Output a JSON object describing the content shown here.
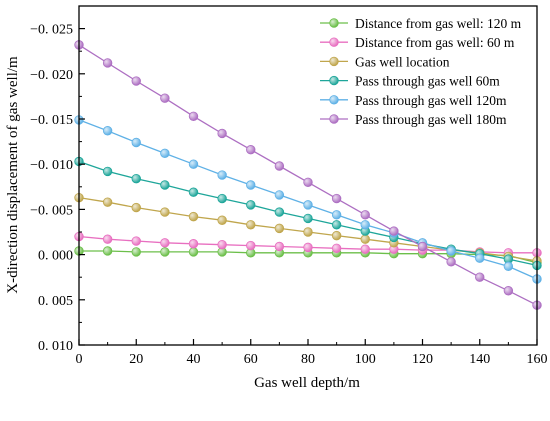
{
  "chart_data": {
    "type": "line",
    "title": "",
    "xlabel": "Gas well depth/m",
    "ylabel": "X-direction displacement of gas well/m",
    "xlim": [
      0,
      160
    ],
    "ylim": [
      0.01,
      -0.0275
    ],
    "y_axis_inverted": true,
    "grid": false,
    "legend_position": "top-right",
    "x_ticks": [
      "0",
      "20",
      "40",
      "60",
      "80",
      "100",
      "120",
      "140",
      "160"
    ],
    "y_ticks": [
      "−0. 025",
      "−0. 020",
      "−0. 015",
      "−0. 010",
      "−0. 005",
      "0. 000",
      "0. 005",
      "0. 010"
    ],
    "y_tick_values": [
      -0.025,
      -0.02,
      -0.015,
      -0.01,
      -0.005,
      0.0,
      0.005,
      0.01
    ],
    "x": [
      0,
      10,
      20,
      30,
      40,
      50,
      60,
      70,
      80,
      90,
      100,
      110,
      120,
      130,
      140,
      150,
      160
    ],
    "series": [
      {
        "name": "Distance from gas well: 120 m",
        "color": "#6cbf4a",
        "values": [
          -0.0004,
          -0.0004,
          -0.0003,
          -0.0003,
          -0.0003,
          -0.0003,
          -0.0002,
          -0.0002,
          -0.0002,
          -0.0002,
          -0.0002,
          -0.0001,
          -0.0001,
          -0.0001,
          0.0,
          0.0001,
          0.0009
        ]
      },
      {
        "name": "Distance from gas well: 60 m",
        "color": "#e86fc0",
        "values": [
          -0.002,
          -0.0017,
          -0.0015,
          -0.0013,
          -0.0012,
          -0.0011,
          -0.001,
          -0.0009,
          -0.0008,
          -0.0007,
          -0.0006,
          -0.0006,
          -0.0005,
          -0.0005,
          -0.0003,
          -0.0002,
          -0.0002
        ]
      },
      {
        "name": "Gas well location",
        "color": "#c0a64d",
        "values": [
          -0.0063,
          -0.0058,
          -0.0052,
          -0.0047,
          -0.0042,
          -0.0038,
          -0.0033,
          -0.0029,
          -0.0025,
          -0.0021,
          -0.0017,
          -0.0013,
          -0.0009,
          -0.0005,
          -0.0002,
          0.0002,
          0.0007
        ]
      },
      {
        "name": "Pass through gas well 60m",
        "color": "#1ea69a",
        "values": [
          -0.0103,
          -0.0092,
          -0.0084,
          -0.0077,
          -0.0069,
          -0.0062,
          -0.0055,
          -0.0047,
          -0.004,
          -0.0033,
          -0.0026,
          -0.0019,
          -0.0012,
          -0.0006,
          -0.0001,
          0.0005,
          0.0012
        ]
      },
      {
        "name": "Pass through gas well 120m",
        "color": "#5fb1e6",
        "values": [
          -0.0149,
          -0.0137,
          -0.0124,
          -0.0112,
          -0.01,
          -0.0088,
          -0.0077,
          -0.0066,
          -0.0055,
          -0.0044,
          -0.0033,
          -0.0024,
          -0.0013,
          -0.0004,
          0.0004,
          0.0013,
          0.0027
        ]
      },
      {
        "name": "Pass through gas well 180m",
        "color": "#ad6fc2",
        "values": [
          -0.0232,
          -0.0212,
          -0.0192,
          -0.0173,
          -0.0153,
          -0.0134,
          -0.0116,
          -0.0098,
          -0.008,
          -0.0062,
          -0.0044,
          -0.0026,
          -0.0009,
          0.0008,
          0.0025,
          0.004,
          0.0056
        ]
      }
    ]
  }
}
